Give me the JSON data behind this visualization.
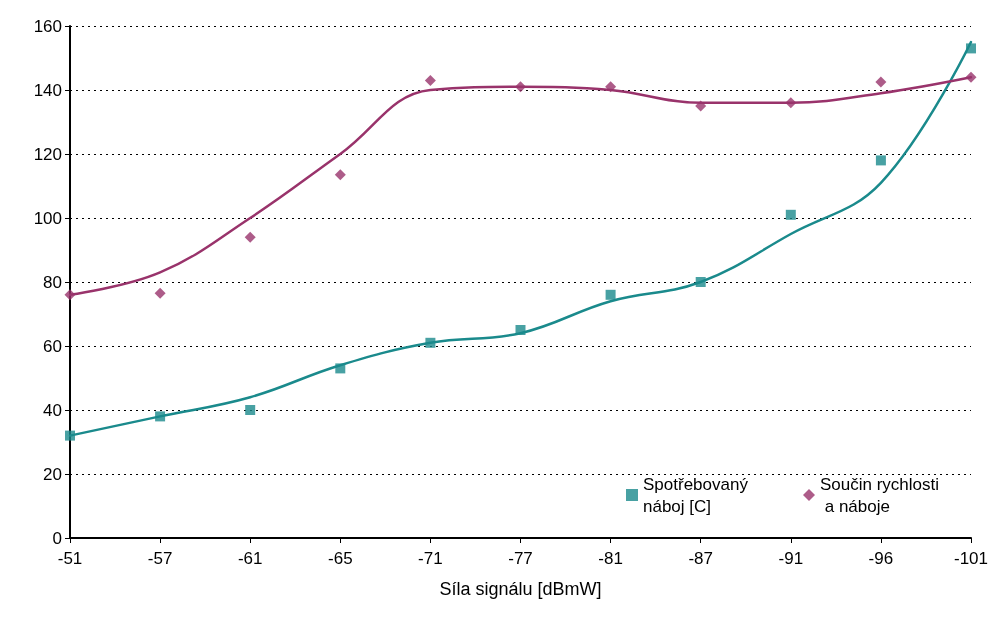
{
  "chart_data": {
    "type": "scatter",
    "xlabel": "Síla signálu [dBmW]",
    "categories": [
      "-51",
      "-57",
      "-61",
      "-65",
      "-71",
      "-77",
      "-81",
      "-87",
      "-91",
      "-96",
      "-101"
    ],
    "series": [
      {
        "name": "Spotřebovaný náboj [C]",
        "marker": "square",
        "color": "#1a8a8c",
        "values": [
          32,
          38,
          40,
          53,
          61,
          65,
          76,
          80,
          101,
          118,
          153
        ]
      },
      {
        "name": "Součin rychlosti a náboje",
        "marker": "diamond",
        "color": "#99336b",
        "values": [
          76,
          76.5,
          94,
          113.5,
          143,
          141,
          141,
          135,
          136,
          142.5,
          144
        ]
      },
      {
        "type": "line",
        "marker": "none",
        "line_style": "solid",
        "color": "#1a8a8c",
        "values": [
          32,
          38,
          44,
          54,
          61,
          64,
          74,
          80,
          95,
          111,
          155
        ]
      },
      {
        "type": "line",
        "marker": "none",
        "line_style": "solid",
        "color": "#99336b",
        "values": [
          76,
          83,
          100,
          120,
          140,
          141,
          140,
          136,
          136,
          139,
          144
        ]
      }
    ],
    "ylim": [
      0,
      160
    ],
    "yticks": [
      0,
      20,
      40,
      60,
      80,
      100,
      120,
      140,
      160
    ],
    "grid": "y",
    "legend": "bottom right"
  }
}
